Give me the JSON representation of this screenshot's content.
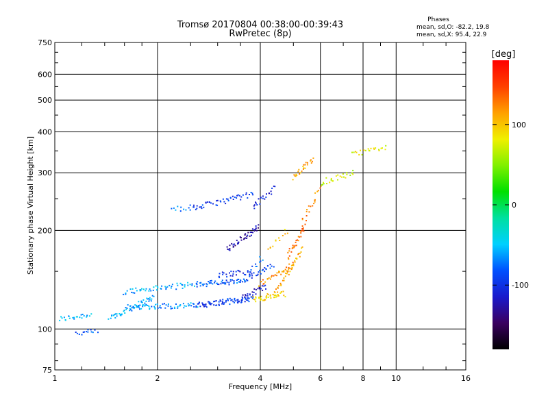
{
  "chart_data": {
    "type": "scatter",
    "title": "Tromsø 20170804 00:38:00-00:39:43",
    "subtitle": "RwPretec (8p)",
    "stats_title": "Phases",
    "stats_lines": [
      "mean, sd,O: -82.2, 19.8",
      "mean, sd,X:  95.4, 22.9"
    ],
    "xlabel": "Frequency [MHz]",
    "ylabel": "Stationary phase Virtual Height [km]",
    "xscale": "log",
    "yscale": "log",
    "xlim": [
      1,
      16
    ],
    "ylim": [
      75,
      750
    ],
    "xticks": [
      1,
      2,
      4,
      6,
      8,
      10,
      16
    ],
    "xticklabels": [
      "1",
      "2",
      "4",
      "6",
      "8",
      "10",
      "16"
    ],
    "yticks": [
      75,
      100,
      200,
      300,
      400,
      500,
      600,
      750
    ],
    "yticklabels": [
      "75",
      "100",
      "200",
      "300",
      "400",
      "500",
      "600",
      "750"
    ],
    "grid": true,
    "colorbar": {
      "label": "[deg]",
      "range": [
        -180,
        180
      ],
      "ticks": [
        -100,
        0,
        100
      ],
      "ticklabels": [
        "-100",
        "0",
        "100"
      ],
      "colors": [
        "#000000",
        "#3a0060",
        "#1a1acc",
        "#0050ff",
        "#00d0ff",
        "#00e0a0",
        "#00e000",
        "#80f000",
        "#f0f000",
        "#ffa000",
        "#ff4000",
        "#ff0000"
      ]
    },
    "series": [
      {
        "segments": [
          {
            "f0": 1.03,
            "f1": 1.28,
            "h0": 107,
            "h1": 111,
            "phase": -55,
            "n": 24
          },
          {
            "f0": 1.15,
            "f1": 1.33,
            "h0": 97,
            "h1": 98,
            "phase": -80,
            "n": 14
          },
          {
            "f0": 1.45,
            "f1": 1.95,
            "h0": 108,
            "h1": 125,
            "phase": -60,
            "n": 55
          },
          {
            "f0": 1.65,
            "f1": 2.6,
            "h0": 117,
            "h1": 118,
            "phase": -65,
            "n": 60
          },
          {
            "f0": 2.6,
            "f1": 3.8,
            "h0": 118,
            "h1": 124,
            "phase": -95,
            "n": 80
          },
          {
            "f0": 3.5,
            "f1": 4.15,
            "h0": 124,
            "h1": 135,
            "phase": -110,
            "n": 26
          },
          {
            "f0": 1.6,
            "f1": 2.6,
            "h0": 130,
            "h1": 137,
            "phase": -58,
            "n": 55
          },
          {
            "f0": 2.6,
            "f1": 3.6,
            "h0": 137,
            "h1": 140,
            "phase": -80,
            "n": 55
          },
          {
            "f0": 3.6,
            "f1": 4.35,
            "h0": 140,
            "h1": 158,
            "phase": -90,
            "n": 30
          },
          {
            "f0": 3.0,
            "f1": 3.75,
            "h0": 146,
            "h1": 150,
            "phase": -100,
            "n": 26
          },
          {
            "f0": 3.75,
            "f1": 4.05,
            "h0": 150,
            "h1": 165,
            "phase": -80,
            "n": 10
          },
          {
            "f0": 2.5,
            "f1": 3.8,
            "h0": 233,
            "h1": 258,
            "phase": -95,
            "n": 50
          },
          {
            "f0": 2.2,
            "f1": 2.5,
            "h0": 232,
            "h1": 235,
            "phase": -70,
            "n": 10
          },
          {
            "f0": 3.2,
            "f1": 3.95,
            "h0": 175,
            "h1": 205,
            "phase": -125,
            "n": 45
          },
          {
            "f0": 3.8,
            "f1": 4.4,
            "h0": 235,
            "h1": 270,
            "phase": -105,
            "n": 22
          }
        ]
      },
      {
        "segments": [
          {
            "f0": 3.8,
            "f1": 4.7,
            "h0": 123,
            "h1": 128,
            "phase": 95,
            "n": 40
          },
          {
            "f0": 4.4,
            "f1": 5.3,
            "h0": 128,
            "h1": 175,
            "phase": 110,
            "n": 40
          },
          {
            "f0": 4.0,
            "f1": 5.0,
            "h0": 137,
            "h1": 158,
            "phase": 120,
            "n": 35
          },
          {
            "f0": 4.8,
            "f1": 5.4,
            "h0": 165,
            "h1": 205,
            "phase": 130,
            "n": 30
          },
          {
            "f0": 5.0,
            "f1": 5.7,
            "h0": 290,
            "h1": 330,
            "phase": 110,
            "n": 25
          },
          {
            "f0": 5.3,
            "f1": 6.0,
            "h0": 210,
            "h1": 270,
            "phase": 125,
            "n": 20
          },
          {
            "f0": 6.0,
            "f1": 7.5,
            "h0": 280,
            "h1": 300,
            "phase": 70,
            "n": 25
          },
          {
            "f0": 7.5,
            "f1": 9.3,
            "h0": 340,
            "h1": 360,
            "phase": 80,
            "n": 22
          },
          {
            "f0": 4.2,
            "f1": 4.8,
            "h0": 175,
            "h1": 200,
            "phase": 95,
            "n": 12
          }
        ]
      }
    ]
  }
}
